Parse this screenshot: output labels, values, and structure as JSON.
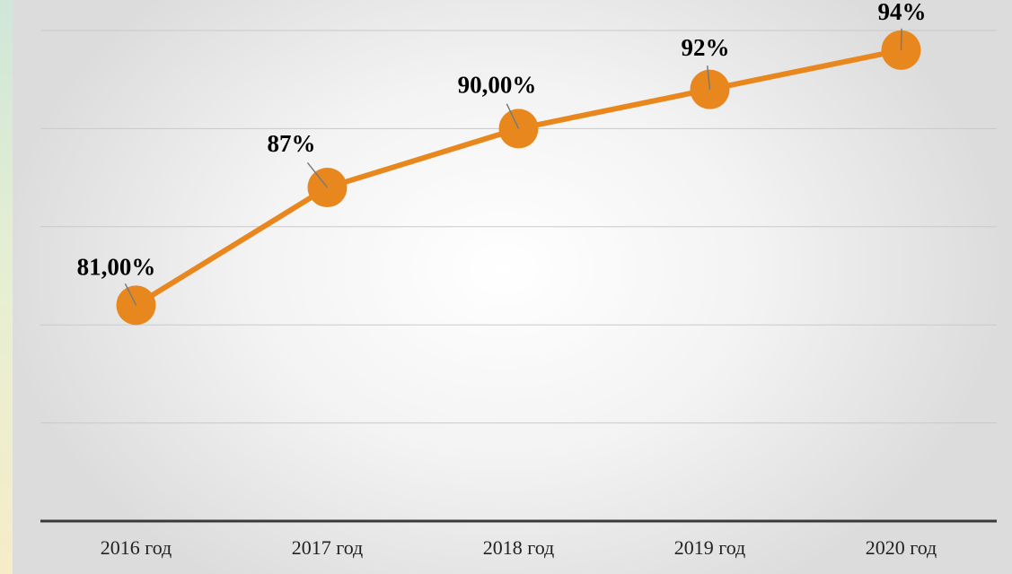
{
  "chart_data": {
    "type": "line",
    "categories": [
      "2016 год",
      "2017 год",
      "2018 год",
      "2019 год",
      "2020 год"
    ],
    "series": [
      {
        "color": "#e8871e",
        "values": [
          81,
          87,
          90,
          92,
          94
        ],
        "value_labels": [
          "81,00%",
          "87%",
          "90,00%",
          "92%",
          "94%"
        ]
      }
    ],
    "ylim": [
      70,
      95
    ],
    "yticks": [
      70,
      75,
      80,
      85,
      90,
      95
    ],
    "grid": true
  }
}
